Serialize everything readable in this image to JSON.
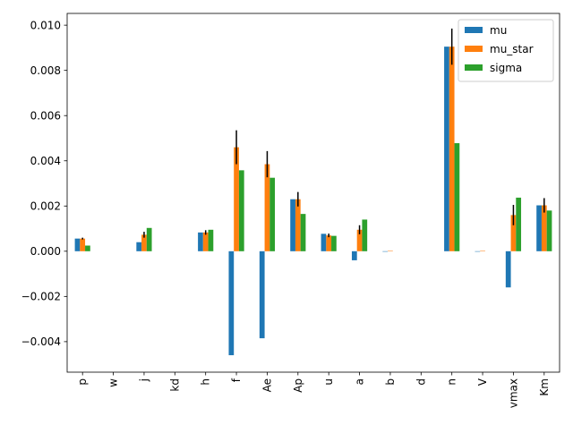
{
  "chart_data": {
    "type": "bar",
    "categories": [
      "p",
      "w",
      "j",
      "kd",
      "h",
      "f",
      "Ae",
      "Ap",
      "u",
      "a",
      "b",
      "d",
      "n",
      "V",
      "vmax",
      "Km"
    ],
    "series": [
      {
        "name": "mu",
        "color": "#1f77b4",
        "values": [
          0.00056,
          0,
          0.0004,
          0,
          0.00083,
          -0.0046,
          -0.00385,
          0.0023,
          0.00077,
          -0.0004,
          -2e-05,
          0,
          0.00905,
          -2e-05,
          -0.0016,
          0.00203
        ]
      },
      {
        "name": "mu_star",
        "color": "#ff7f0e",
        "values": [
          0.00056,
          0,
          0.00073,
          0,
          0.00083,
          0.0046,
          0.00385,
          0.0023,
          0.0007,
          0.00095,
          2e-05,
          0,
          0.00905,
          2e-05,
          0.0016,
          0.00203
        ],
        "errors": [
          4e-05,
          0,
          0.00013,
          0,
          0.0001,
          0.00075,
          0.00058,
          0.00032,
          8e-05,
          0.0002,
          0,
          0,
          0.0008,
          0,
          0.00045,
          0.00032
        ]
      },
      {
        "name": "sigma",
        "color": "#2ca02c",
        "values": [
          0.00025,
          0,
          0.00103,
          0,
          0.00095,
          0.00358,
          0.00325,
          0.00165,
          0.00068,
          0.0014,
          0,
          0,
          0.00478,
          0,
          0.00237,
          0.0018
        ]
      }
    ],
    "yticks": [
      "0.010",
      "0.008",
      "0.006",
      "0.004",
      "0.002",
      "0.000",
      "−0.002",
      "−0.004"
    ],
    "ytick_values": [
      0.01,
      0.008,
      0.006,
      0.004,
      0.002,
      0.0,
      -0.002,
      -0.004
    ],
    "ylim": [
      -0.00535,
      0.01052
    ],
    "grid": false,
    "legend_position": "top-right",
    "title": "",
    "xlabel": "",
    "ylabel": ""
  }
}
